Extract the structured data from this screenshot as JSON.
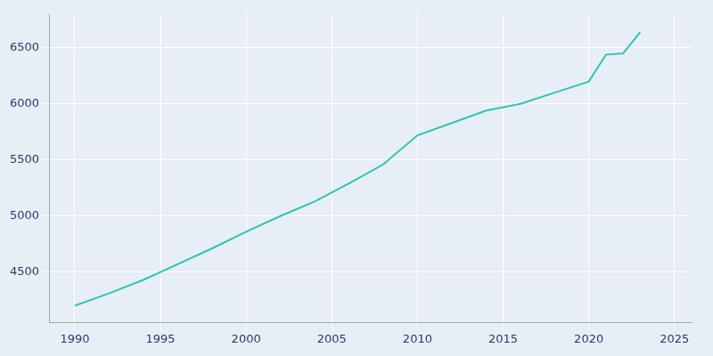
{
  "chart_data": {
    "type": "line",
    "x": [
      1990,
      1992,
      1994,
      1996,
      1998,
      2000,
      2002,
      2004,
      2006,
      2008,
      2010,
      2012,
      2014,
      2016,
      2018,
      2020,
      2021,
      2022,
      2023
    ],
    "values": [
      4200,
      4310,
      4430,
      4570,
      4710,
      4860,
      5000,
      5130,
      5290,
      5460,
      5720,
      5830,
      5940,
      6000,
      6100,
      6200,
      6440,
      6450,
      6640
    ],
    "color": "#2ec4b6",
    "xlim": [
      1988.5,
      2026
    ],
    "ylim": [
      4050,
      6800
    ],
    "xticks": [
      1990,
      1995,
      2000,
      2005,
      2010,
      2015,
      2020,
      2025
    ],
    "yticks": [
      4500,
      5000,
      5500,
      6000,
      6500
    ],
    "grid": true
  }
}
